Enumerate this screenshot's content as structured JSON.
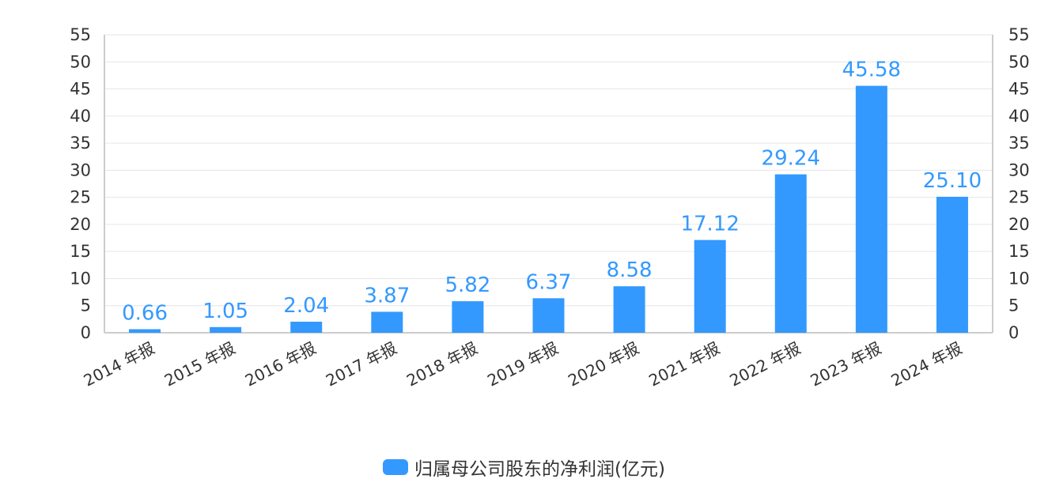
{
  "colors": {
    "bar": "#3399ff",
    "grid": "#e6e6e6",
    "axis": "#cccccc",
    "text": "#333333",
    "data_label": "#3399ff"
  },
  "chart_data": {
    "type": "bar",
    "title": "",
    "xlabel": "",
    "ylabel": "",
    "categories": [
      "2014 年报",
      "2015 年报",
      "2016 年报",
      "2017 年报",
      "2018 年报",
      "2019 年报",
      "2020 年报",
      "2021 年报",
      "2022 年报",
      "2023 年报",
      "2024 年报"
    ],
    "series": [
      {
        "name": "归属母公司股东的净利润(亿元)",
        "values": [
          0.66,
          1.05,
          2.04,
          3.87,
          5.82,
          6.37,
          8.58,
          17.12,
          29.24,
          45.58,
          25.1
        ],
        "labels": [
          "0.66",
          "1.05",
          "2.04",
          "3.87",
          "5.82",
          "6.37",
          "8.58",
          "17.12",
          "29.24",
          "45.58",
          "25.10"
        ]
      }
    ],
    "ylim": [
      0,
      55
    ],
    "yticks": [
      0,
      5,
      10,
      15,
      20,
      25,
      30,
      35,
      40,
      45,
      50,
      55
    ],
    "ytick_labels": [
      "0",
      "5",
      "10",
      "15",
      "20",
      "25",
      "30",
      "35",
      "40",
      "45",
      "50",
      "55"
    ],
    "right_axis": true,
    "grid": true,
    "legend_position": "bottom-center"
  }
}
